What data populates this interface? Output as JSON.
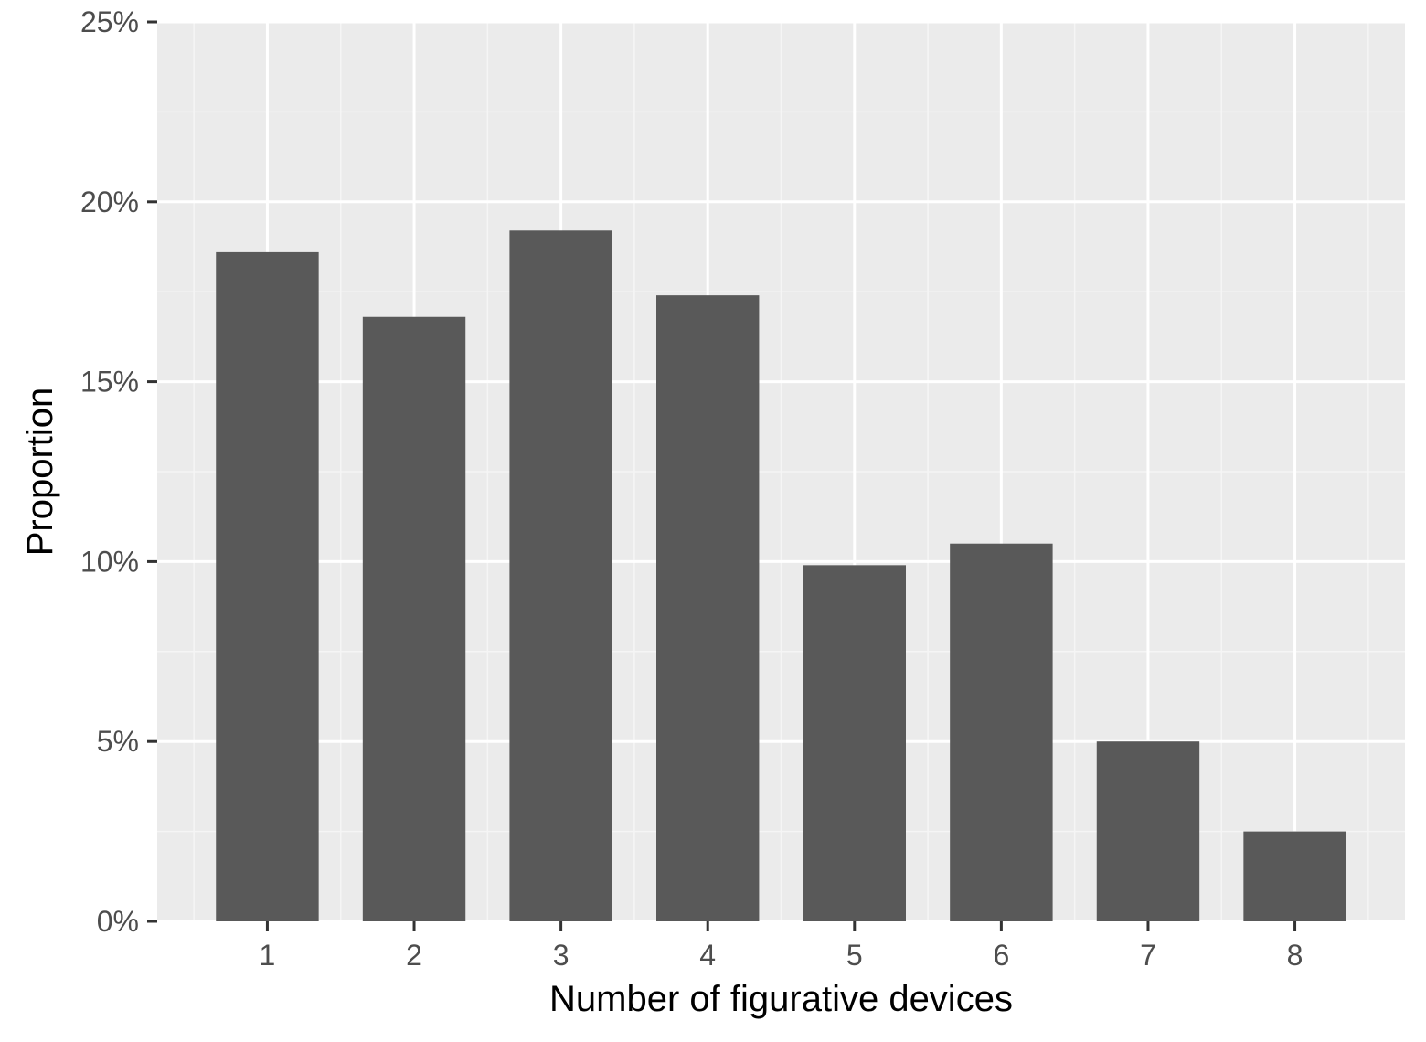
{
  "chart_data": {
    "type": "bar",
    "title": "",
    "xlabel": "Number of figurative devices",
    "ylabel": "Proportion",
    "categories": [
      "1",
      "2",
      "3",
      "4",
      "5",
      "6",
      "7",
      "8"
    ],
    "values": [
      18.6,
      16.8,
      19.2,
      17.4,
      9.9,
      10.5,
      5.0,
      2.5
    ],
    "value_unit": "%",
    "ylim": [
      0,
      25
    ],
    "yticks": [
      0,
      5,
      10,
      15,
      20,
      25
    ],
    "ytick_labels": [
      "0%",
      "5%",
      "10%",
      "15%",
      "20%",
      "25%"
    ],
    "grid": true,
    "legend": "none",
    "colors": {
      "bar": "#595959",
      "panel": "#ebebeb",
      "grid_major": "#ffffff",
      "grid_minor": "#f5f5f5",
      "tick_text": "#4d4d4d",
      "tick_mark": "#333333",
      "axis_title": "#000000"
    }
  }
}
